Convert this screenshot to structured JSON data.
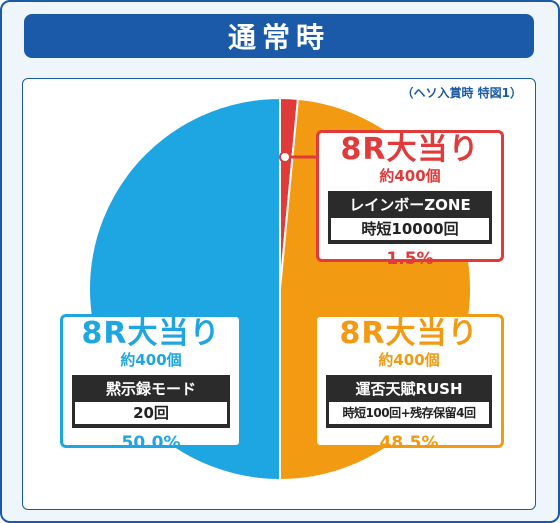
{
  "title": "通常時",
  "note": "（ヘソ入賞時 特図1）",
  "colors": {
    "red": "#e03a3a",
    "blue": "#1ea6e3",
    "orange": "#f29a12",
    "navy": "#1a5aa8"
  },
  "chart_data": {
    "type": "pie",
    "slices": [
      {
        "label": "8R大当り",
        "count": "約400個",
        "mode": "レインボーZONE",
        "detail": "時短10000回",
        "percent_text": "1.5%",
        "value": 1.5,
        "color": "#e03a3a"
      },
      {
        "label": "8R大当り",
        "count": "約400個",
        "mode": "運否天賦RUSH",
        "detail": "時短100回+残存保留4回",
        "percent_text": "48.5%",
        "value": 48.5,
        "color": "#f29a12"
      },
      {
        "label": "8R大当り",
        "count": "約400個",
        "mode": "黙示録モード",
        "detail": "20回",
        "percent_text": "50.0%",
        "value": 50.0,
        "color": "#1ea6e3"
      }
    ]
  }
}
